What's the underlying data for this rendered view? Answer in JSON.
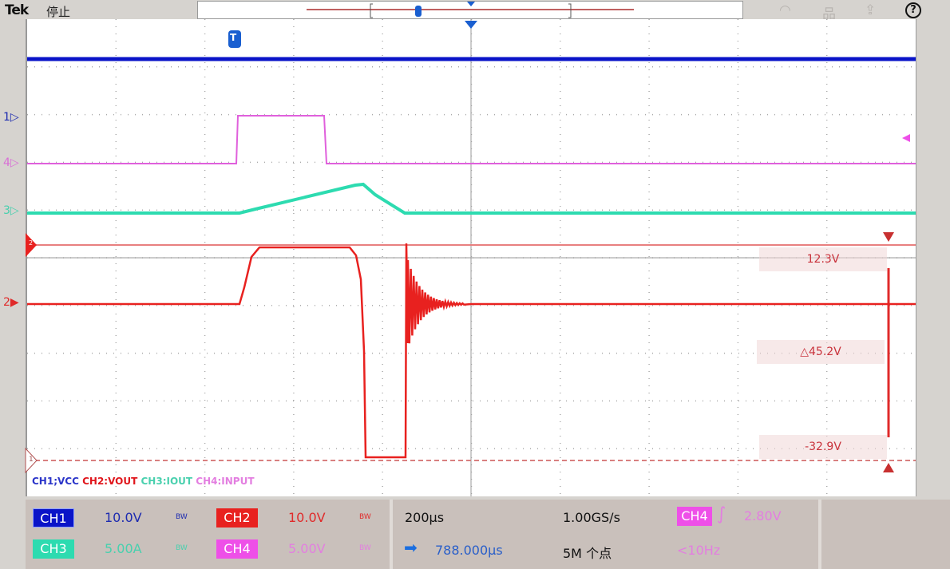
{
  "header": {
    "brand": "Tek",
    "state": "停止",
    "icons": [
      "wifi-icon",
      "network-icon",
      "export-icon",
      "help-icon"
    ],
    "help_label": "?"
  },
  "markers": {
    "ch1": "1",
    "ch2": "2",
    "ch3": "3",
    "ch4": "4",
    "cursor_a": "2",
    "cursor_b": "1",
    "trigger": "T"
  },
  "legend": {
    "ch1": "CH1;VCC",
    "ch2": "CH2:VOUT",
    "ch3": "CH3:IOUT",
    "ch4": "CH4:INPUT"
  },
  "cursors": {
    "upper": "12.3V",
    "delta": "△45.2V",
    "lower": "-32.9V"
  },
  "channels": [
    {
      "label": "CH1",
      "scale": "10.0V",
      "bw": "BW",
      "color": "#0a14c8",
      "text": "#1d2bb0"
    },
    {
      "label": "CH2",
      "scale": "10.0V",
      "bw": "BW",
      "color": "#e8211f",
      "text": "#e02a2a"
    },
    {
      "label": "CH3",
      "scale": "5.00A",
      "bw": "BW",
      "color": "#2ddbb0",
      "text": "#49d0ae"
    },
    {
      "label": "CH4",
      "scale": "5.00V",
      "bw": "BW",
      "color": "#ee4fe8",
      "text": "#e37ee0"
    }
  ],
  "horizontal": {
    "timebase": "200µs",
    "sample_rate": "1.00GS/s",
    "position": "788.000µs",
    "record_length": "5M 个点"
  },
  "trigger": {
    "source": "CH4",
    "level": "2.80V",
    "frequency": "<10Hz",
    "slope": "rising"
  }
}
